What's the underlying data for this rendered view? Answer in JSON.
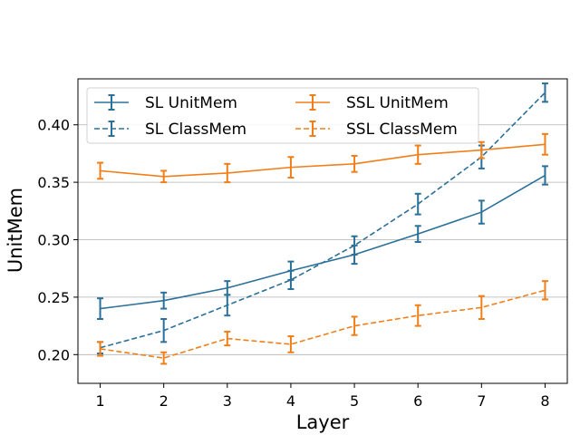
{
  "chart_data": {
    "type": "line",
    "xlabel": "Layer",
    "ylabel": "UnitMem",
    "x": [
      1,
      2,
      3,
      4,
      5,
      6,
      7,
      8
    ],
    "xlim": [
      0.65,
      8.35
    ],
    "ylim": [
      0.175,
      0.44
    ],
    "yticks": [
      0.2,
      0.25,
      0.3,
      0.35,
      0.4
    ],
    "ytick_labels": [
      "0.20",
      "0.25",
      "0.30",
      "0.35",
      "0.40"
    ],
    "grid": "horizontal",
    "legend_placement": "top-left",
    "series": [
      {
        "name": "SL UnitMem",
        "color": "#2a7098",
        "dash": "solid",
        "values": [
          0.24,
          0.247,
          0.258,
          0.273,
          0.287,
          0.305,
          0.324,
          0.356
        ],
        "errors": [
          0.009,
          0.007,
          0.006,
          0.008,
          0.008,
          0.007,
          0.01,
          0.008
        ]
      },
      {
        "name": "SL ClassMem",
        "color": "#2a7098",
        "dash": "dashed",
        "values": [
          0.206,
          0.221,
          0.243,
          0.265,
          0.295,
          0.331,
          0.372,
          0.428
        ],
        "errors": [
          0.005,
          0.01,
          0.009,
          0.008,
          0.008,
          0.009,
          0.01,
          0.008
        ]
      },
      {
        "name": "SSL UnitMem",
        "color": "#f07f1a",
        "dash": "solid",
        "values": [
          0.36,
          0.355,
          0.358,
          0.363,
          0.366,
          0.374,
          0.378,
          0.383
        ],
        "errors": [
          0.007,
          0.005,
          0.008,
          0.009,
          0.007,
          0.008,
          0.007,
          0.009
        ]
      },
      {
        "name": "SSL ClassMem",
        "color": "#f07f1a",
        "dash": "dashed",
        "values": [
          0.205,
          0.197,
          0.214,
          0.209,
          0.225,
          0.234,
          0.241,
          0.256
        ],
        "errors": [
          0.006,
          0.005,
          0.006,
          0.007,
          0.008,
          0.009,
          0.01,
          0.008
        ]
      }
    ]
  }
}
